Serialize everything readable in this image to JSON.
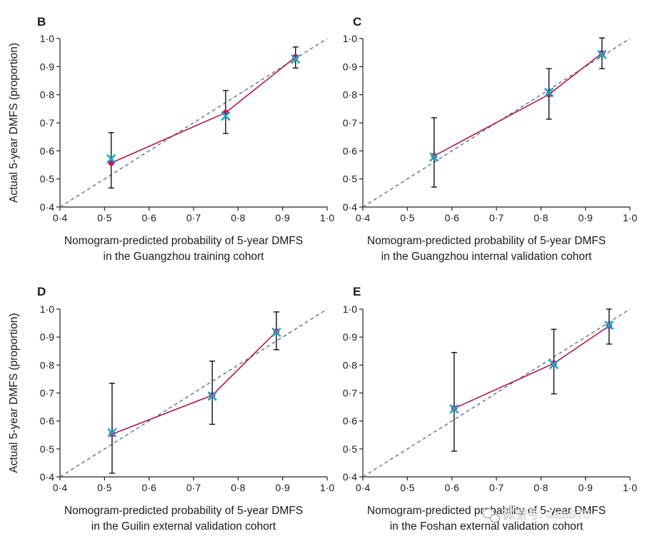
{
  "colors": {
    "calibration_line": "#b0174f",
    "marker_point": "#c2185b",
    "marker_cross": "#1ea7c4",
    "reference_line": "#4f6f6f",
    "error_bar": "#111111",
    "axis": "#222222"
  },
  "watermark": {
    "icon": "wechat-icon",
    "text": "微信号: data973"
  },
  "chart_data": [
    {
      "panel": "B",
      "type": "line",
      "title": "",
      "xlabel_lines": [
        "Nomogram-predicted probability of 5-year DMFS",
        "in the Guangzhou training cohort"
      ],
      "ylabel": "Actual 5-year DMFS (proportion)",
      "xlim": [
        0.4,
        1.0
      ],
      "ylim": [
        0.4,
        1.0
      ],
      "x_ticks": [
        "0·4",
        "0·5",
        "0·6",
        "0·7",
        "0·8",
        "0·9",
        "1·0"
      ],
      "y_ticks": [
        "0·4",
        "0·5",
        "0·6",
        "0·7",
        "0·8",
        "0·9",
        "1·0"
      ],
      "reference_line": [
        [
          0.4,
          0.4
        ],
        [
          1.0,
          1.0
        ]
      ],
      "points": [
        {
          "x": 0.515,
          "y": 0.557,
          "lower": 0.468,
          "upper": 0.665,
          "cross_y": 0.572
        },
        {
          "x": 0.772,
          "y": 0.736,
          "lower": 0.662,
          "upper": 0.815,
          "cross_y": 0.724
        },
        {
          "x": 0.929,
          "y": 0.934,
          "lower": 0.895,
          "upper": 0.97,
          "cross_y": 0.927
        }
      ]
    },
    {
      "panel": "C",
      "type": "line",
      "title": "",
      "xlabel_lines": [
        "Nomogram-predicted probability of 5-year DMFS",
        "in the Guangzhou internal validation cohort"
      ],
      "ylabel": "",
      "xlim": [
        0.4,
        1.0
      ],
      "ylim": [
        0.4,
        1.0
      ],
      "x_ticks": [
        "0·4",
        "0·5",
        "0·6",
        "0·7",
        "0·8",
        "0·9",
        "1·0"
      ],
      "y_ticks": [
        "0·4",
        "0·5",
        "0·6",
        "0·7",
        "0·8",
        "0·9",
        "1·0"
      ],
      "reference_line": [
        [
          0.4,
          0.4
        ],
        [
          1.0,
          1.0
        ]
      ],
      "points": [
        {
          "x": 0.56,
          "y": 0.582,
          "lower": 0.471,
          "upper": 0.718,
          "cross_y": 0.578
        },
        {
          "x": 0.818,
          "y": 0.801,
          "lower": 0.713,
          "upper": 0.893,
          "cross_y": 0.808
        },
        {
          "x": 0.937,
          "y": 0.948,
          "lower": 0.893,
          "upper": 1.002,
          "cross_y": 0.943
        }
      ]
    },
    {
      "panel": "D",
      "type": "line",
      "title": "",
      "xlabel_lines": [
        "Nomogram-predicted probability of 5-year DMFS",
        "in the Guilin external validation cohort"
      ],
      "ylabel": "Actual 5-year DMFS (proportion)",
      "xlim": [
        0.4,
        1.0
      ],
      "ylim": [
        0.4,
        1.0
      ],
      "x_ticks": [
        "0·4",
        "0·5",
        "0·6",
        "0·7",
        "0·8",
        "0·9",
        "1·0"
      ],
      "y_ticks": [
        "0·4",
        "0·5",
        "0·6",
        "0·7",
        "0·8",
        "0·9",
        "1·0"
      ],
      "reference_line": [
        [
          0.4,
          0.4
        ],
        [
          1.0,
          1.0
        ]
      ],
      "points": [
        {
          "x": 0.517,
          "y": 0.553,
          "lower": 0.413,
          "upper": 0.735,
          "cross_y": 0.558
        },
        {
          "x": 0.742,
          "y": 0.692,
          "lower": 0.588,
          "upper": 0.814,
          "cross_y": 0.689
        },
        {
          "x": 0.886,
          "y": 0.92,
          "lower": 0.855,
          "upper": 0.99,
          "cross_y": 0.917
        }
      ]
    },
    {
      "panel": "E",
      "type": "line",
      "title": "",
      "xlabel_lines": [
        "Nomogram-predicted probability of 5-year DMFS",
        "in the Foshan external validation cohort"
      ],
      "ylabel": "",
      "xlim": [
        0.4,
        1.0
      ],
      "ylim": [
        0.4,
        1.0
      ],
      "x_ticks": [
        "0·4",
        "0·5",
        "0·6",
        "0·7",
        "0·8",
        "0·9",
        "1·0"
      ],
      "y_ticks": [
        "0·4",
        "0·5",
        "0·6",
        "0·7",
        "0·8",
        "0·9",
        "1·0"
      ],
      "reference_line": [
        [
          0.4,
          0.4
        ],
        [
          1.0,
          1.0
        ]
      ],
      "points": [
        {
          "x": 0.605,
          "y": 0.645,
          "lower": 0.492,
          "upper": 0.845,
          "cross_y": 0.643
        },
        {
          "x": 0.829,
          "y": 0.806,
          "lower": 0.697,
          "upper": 0.928,
          "cross_y": 0.802
        },
        {
          "x": 0.953,
          "y": 0.94,
          "lower": 0.875,
          "upper": 1.0,
          "cross_y": 0.942
        }
      ]
    }
  ]
}
